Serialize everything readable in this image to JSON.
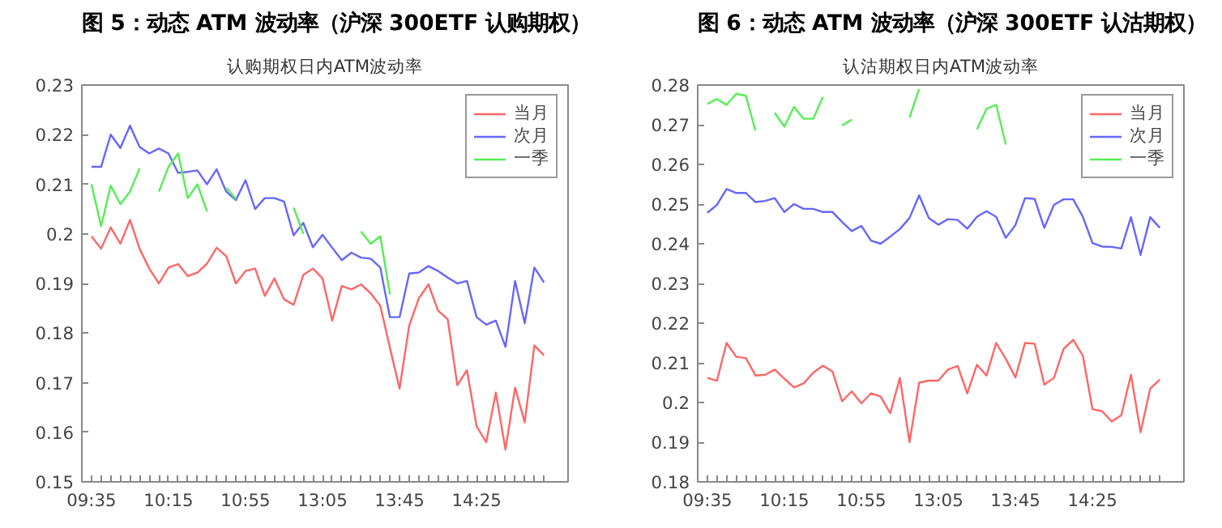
{
  "chart_data": [
    {
      "type": "line",
      "title": "图 5：动态 ATM 波动率（沪深 300ETF 认购期权）",
      "subtitle": "认购期权日内ATM波动率",
      "categories": [
        "09:35",
        null,
        null,
        null,
        null,
        null,
        null,
        null,
        "10:15",
        null,
        null,
        null,
        null,
        null,
        null,
        null,
        "10:55",
        null,
        null,
        null,
        null,
        null,
        null,
        null,
        "13:05",
        null,
        null,
        null,
        null,
        null,
        null,
        null,
        "13:45",
        null,
        null,
        null,
        null,
        null,
        null,
        null,
        "14:25",
        null,
        null,
        null,
        null,
        null,
        null,
        null
      ],
      "series": [
        {
          "name": "当月",
          "color": "#ff6666",
          "values": [
            0.1995,
            0.197,
            0.2013,
            0.198,
            0.2028,
            0.197,
            0.193,
            0.19,
            0.1932,
            0.1939,
            0.1915,
            0.1922,
            0.194,
            0.1972,
            0.1955,
            0.19,
            0.1925,
            0.193,
            0.1875,
            0.191,
            0.1868,
            0.1857,
            0.1917,
            0.193,
            0.191,
            0.1825,
            0.1895,
            0.1888,
            0.1898,
            0.188,
            0.1855,
            0.177,
            0.1688,
            0.1815,
            0.187,
            0.1898,
            0.1845,
            0.1828,
            0.1695,
            0.1725,
            0.1612,
            0.158,
            0.168,
            0.1565,
            0.169,
            0.162,
            0.1775,
            0.1755
          ]
        },
        {
          "name": "次月",
          "color": "#6666ff",
          "values": [
            0.2135,
            0.2135,
            0.22,
            0.2173,
            0.2218,
            0.2175,
            0.2162,
            0.2172,
            0.2162,
            0.2123,
            0.2125,
            0.2128,
            0.21,
            0.213,
            0.2085,
            0.2068,
            0.2108,
            0.205,
            0.2072,
            0.2072,
            0.2065,
            0.1997,
            0.2022,
            0.1973,
            0.1998,
            0.1972,
            0.1947,
            0.1962,
            0.1952,
            0.195,
            0.1932,
            0.1832,
            0.1832,
            0.192,
            0.1922,
            0.1935,
            0.1925,
            0.1912,
            0.19,
            0.1905,
            0.1832,
            0.1817,
            0.1825,
            0.1772,
            0.1905,
            0.182,
            0.1932,
            0.1902
          ]
        },
        {
          "name": "一季",
          "color": "#55ee55",
          "values": [
            0.21,
            0.2015,
            0.2097,
            0.206,
            0.2085,
            0.2132,
            null,
            0.2085,
            0.2135,
            0.2162,
            0.2072,
            0.21,
            0.2045,
            null,
            0.2093,
            0.207,
            null,
            null,
            null,
            null,
            null,
            0.2053,
            0.2,
            null,
            null,
            null,
            null,
            null,
            0.2005,
            0.198,
            0.1995,
            0.1878,
            null,
            null,
            null,
            null,
            null,
            null,
            null,
            null,
            null,
            null,
            null,
            null,
            null,
            null,
            null,
            null
          ]
        }
      ],
      "ylim": [
        0.15,
        0.23
      ],
      "yticks": [
        0.15,
        0.16,
        0.17,
        0.18,
        0.19,
        0.2,
        0.21,
        0.22,
        0.23
      ],
      "grid": false,
      "legend": "top right",
      "marker": "none",
      "line_style": "solid"
    },
    {
      "type": "line",
      "title": "图 6：动态 ATM 波动率（沪深 300ETF 认沽期权）",
      "subtitle": "认沽期权日内ATM波动率",
      "categories": [
        "09:35",
        null,
        null,
        null,
        null,
        null,
        null,
        null,
        "10:15",
        null,
        null,
        null,
        null,
        null,
        null,
        null,
        "10:55",
        null,
        null,
        null,
        null,
        null,
        null,
        null,
        "13:05",
        null,
        null,
        null,
        null,
        null,
        null,
        null,
        "13:45",
        null,
        null,
        null,
        null,
        null,
        null,
        null,
        "14:25",
        null,
        null,
        null,
        null,
        null,
        null,
        null
      ],
      "series": [
        {
          "name": "当月",
          "color": "#ff6666",
          "values": [
            0.2062,
            0.2055,
            0.215,
            0.2115,
            0.2112,
            0.2068,
            0.207,
            0.2083,
            0.206,
            0.2038,
            0.2048,
            0.2075,
            0.2093,
            0.2078,
            0.2003,
            0.2028,
            0.1998,
            0.2023,
            0.2015,
            0.1973,
            0.2062,
            0.19,
            0.205,
            0.2055,
            0.2055,
            0.2083,
            0.2092,
            0.2023,
            0.2095,
            0.2068,
            0.215,
            0.211,
            0.2063,
            0.215,
            0.2148,
            0.2045,
            0.2062,
            0.2135,
            0.2158,
            0.2118,
            0.1983,
            0.1978,
            0.1952,
            0.1968,
            0.207,
            0.1925,
            0.2035,
            0.2058
          ]
        },
        {
          "name": "次月",
          "color": "#6666ff",
          "values": [
            0.2478,
            0.2498,
            0.2538,
            0.2528,
            0.2528,
            0.2505,
            0.2508,
            0.2515,
            0.248,
            0.25,
            0.2488,
            0.2488,
            0.248,
            0.248,
            0.2455,
            0.2432,
            0.2445,
            0.2408,
            0.24,
            0.2418,
            0.2437,
            0.2465,
            0.2522,
            0.2465,
            0.2448,
            0.2462,
            0.246,
            0.2438,
            0.2468,
            0.2482,
            0.2468,
            0.2415,
            0.2447,
            0.2515,
            0.2513,
            0.244,
            0.2498,
            0.2512,
            0.2512,
            0.2468,
            0.2402,
            0.2393,
            0.2392,
            0.2388,
            0.2467,
            0.2372,
            0.2467,
            0.244
          ]
        },
        {
          "name": "一季",
          "color": "#55ee55",
          "values": [
            0.2752,
            0.2765,
            0.275,
            0.2778,
            0.2773,
            0.2685,
            null,
            0.273,
            0.2695,
            0.2745,
            0.2715,
            0.2715,
            0.277,
            null,
            0.2698,
            0.2713,
            null,
            null,
            null,
            null,
            null,
            0.2718,
            0.279,
            null,
            null,
            null,
            null,
            null,
            0.2688,
            0.274,
            0.275,
            0.265,
            null,
            null,
            null,
            null,
            null,
            null,
            null,
            null,
            null,
            null,
            null,
            null,
            null,
            null,
            null,
            null
          ]
        }
      ],
      "ylim": [
        0.18,
        0.28
      ],
      "yticks": [
        0.18,
        0.19,
        0.2,
        0.21,
        0.22,
        0.23,
        0.24,
        0.25,
        0.26,
        0.27,
        0.28
      ],
      "grid": false,
      "legend": "top right",
      "marker": "none",
      "line_style": "solid"
    }
  ]
}
